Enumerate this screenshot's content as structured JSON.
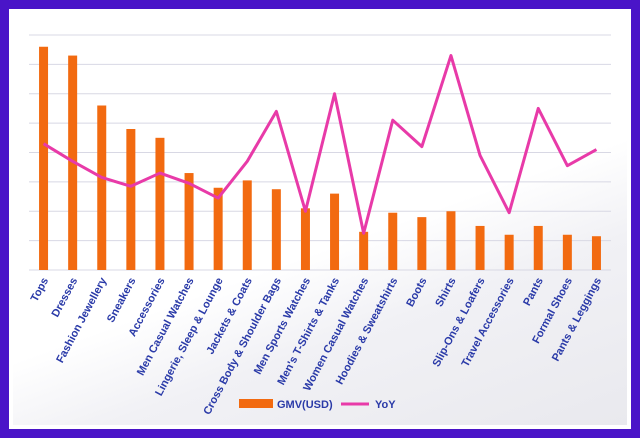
{
  "chart_data": {
    "type": "bar",
    "categories": [
      "Tops",
      "Dresses",
      "Fashion Jewellery",
      "Sneakers",
      "Accessories",
      "Men Casual Watches",
      "Lingerie, Sleep & Lounge",
      "Jackets & Coats",
      "Cross Body & Shoulder Bags",
      "Men Sports Watches",
      "Men's T-Shirts & Tanks",
      "Women Casual Watches",
      "Hoodies & Sweatshirts",
      "Boots",
      "Shirts",
      "Slip-Ons & Loafers",
      "Travel Accessories",
      "Pants",
      "Formal Shoes",
      "Pants & Leggings"
    ],
    "series": [
      {
        "name": "GMV(USD)",
        "type": "bar",
        "color": "#f26a10",
        "values": [
          7.6,
          7.3,
          5.6,
          4.8,
          4.5,
          3.3,
          2.8,
          3.05,
          2.75,
          2.1,
          2.6,
          1.3,
          1.95,
          1.8,
          2.0,
          1.5,
          1.2,
          1.5,
          1.2,
          1.15
        ]
      },
      {
        "name": "YoY",
        "type": "line",
        "color": "#e83aa8",
        "values": [
          4.3,
          3.7,
          3.15,
          2.85,
          3.3,
          2.95,
          2.45,
          3.7,
          5.4,
          2.0,
          6.0,
          1.25,
          5.1,
          4.2,
          7.3,
          3.9,
          1.95,
          5.5,
          3.55,
          4.1
        ]
      }
    ],
    "title": "",
    "xlabel": "",
    "ylabel": "",
    "ylim": [
      0,
      8
    ],
    "grid": true,
    "legend": "bottom"
  }
}
